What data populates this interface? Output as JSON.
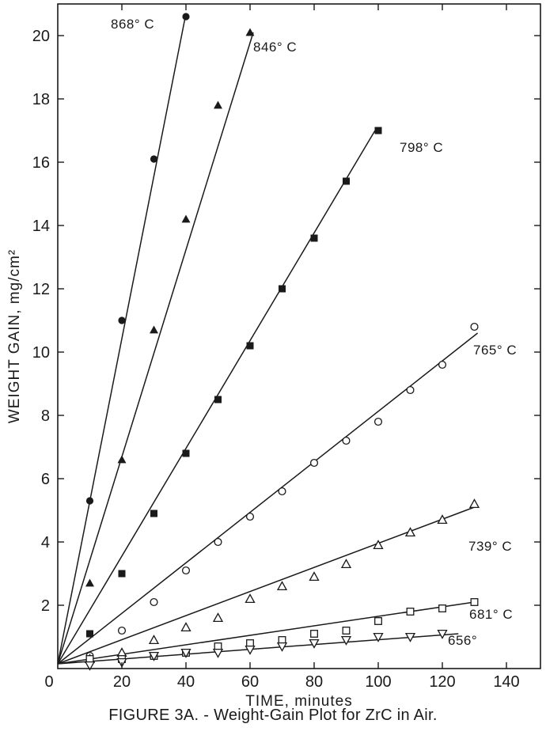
{
  "chart_data": {
    "type": "scatter",
    "title": "",
    "xlabel": "TIME, minutes",
    "ylabel": "WEIGHT GAIN, mg/cm²",
    "xlim": [
      0,
      150
    ],
    "ylim": [
      0,
      21
    ],
    "xticks": [
      "0",
      "20",
      "40",
      "60",
      "80",
      "100",
      "120",
      "140"
    ],
    "yticks": [
      "2",
      "4",
      "6",
      "8",
      "10",
      "12",
      "14",
      "16",
      "18",
      "20"
    ],
    "grid": false,
    "series": [
      {
        "name": "868° C",
        "marker": "filled-circle",
        "x": [
          10,
          20,
          30,
          40
        ],
        "y": [
          5.3,
          11.0,
          16.1,
          20.6
        ],
        "fit_end": [
          40,
          20.7
        ]
      },
      {
        "name": "846° C",
        "marker": "filled-triangle",
        "x": [
          10,
          20,
          30,
          40,
          50,
          60
        ],
        "y": [
          2.7,
          6.6,
          10.7,
          14.2,
          17.8,
          20.1
        ],
        "fit_end": [
          61,
          20.1
        ]
      },
      {
        "name": "798° C",
        "marker": "filled-square",
        "x": [
          10,
          20,
          30,
          40,
          50,
          60,
          70,
          80,
          90,
          100
        ],
        "y": [
          1.1,
          3.0,
          4.9,
          6.8,
          8.5,
          10.2,
          12.0,
          13.6,
          15.4,
          17.0
        ],
        "fit_end": [
          99,
          17.0
        ]
      },
      {
        "name": "765° C",
        "marker": "open-circle",
        "x": [
          10,
          20,
          30,
          40,
          50,
          60,
          70,
          80,
          90,
          100,
          110,
          120,
          130
        ],
        "y": [
          0.4,
          1.2,
          2.1,
          3.1,
          4.0,
          4.8,
          5.6,
          6.5,
          7.2,
          7.8,
          8.8,
          9.6,
          10.8
        ],
        "fit_end": [
          131,
          10.6
        ]
      },
      {
        "name": "739° C",
        "marker": "open-triangle",
        "x": [
          10,
          20,
          30,
          40,
          50,
          60,
          70,
          80,
          90,
          100,
          110,
          120,
          130
        ],
        "y": [
          0.3,
          0.5,
          0.9,
          1.3,
          1.6,
          2.2,
          2.6,
          2.9,
          3.3,
          3.9,
          4.3,
          4.7,
          5.2
        ],
        "fit_end": [
          130,
          5.1
        ]
      },
      {
        "name": "681° C",
        "marker": "open-square",
        "x": [
          10,
          20,
          30,
          40,
          50,
          60,
          70,
          80,
          90,
          100,
          110,
          120,
          130
        ],
        "y": [
          0.3,
          0.3,
          0.4,
          0.5,
          0.7,
          0.8,
          0.9,
          1.1,
          1.2,
          1.5,
          1.8,
          1.9,
          2.1
        ],
        "fit_end": [
          130,
          2.1
        ]
      },
      {
        "name": "656°",
        "marker": "open-inverted-triangle",
        "x": [
          10,
          20,
          30,
          40,
          50,
          60,
          70,
          80,
          90,
          100,
          110,
          120
        ],
        "y": [
          0.1,
          0.2,
          0.4,
          0.5,
          0.5,
          0.6,
          0.7,
          0.8,
          0.9,
          1.0,
          1.0,
          1.1
        ],
        "fit_end": [
          125,
          1.1
        ]
      }
    ]
  },
  "caption": "FIGURE 3A. - Weight-Gain Plot for ZrC in Air."
}
